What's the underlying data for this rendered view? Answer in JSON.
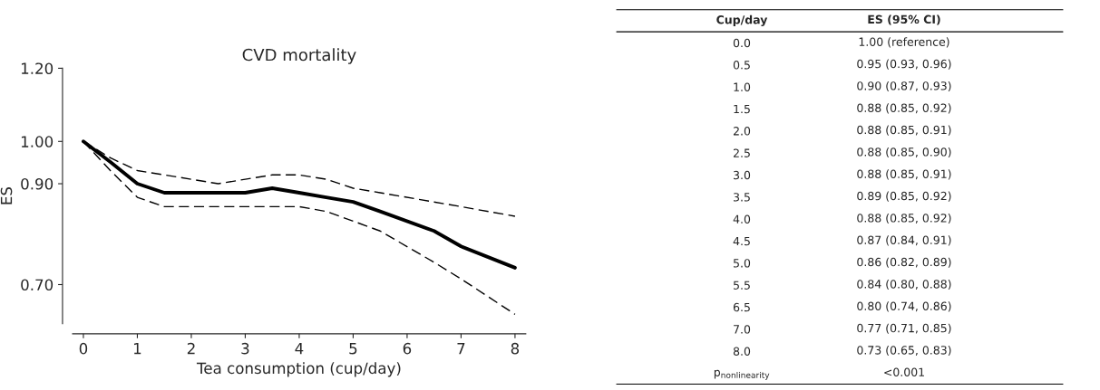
{
  "chart_data": [
    {
      "type": "line",
      "title": "CVD mortality",
      "xlabel": "Tea consumption (cup/day)",
      "ylabel": "ES",
      "x": [
        0,
        0.5,
        1,
        1.5,
        2,
        2.5,
        3,
        3.5,
        4,
        4.5,
        5,
        5.5,
        6.5,
        7,
        8
      ],
      "series": [
        {
          "color": "#000000",
          "line_style": "solid",
          "values": [
            1.0,
            0.95,
            0.9,
            0.88,
            0.88,
            0.88,
            0.88,
            0.89,
            0.88,
            0.87,
            0.86,
            0.84,
            0.8,
            0.77,
            0.73
          ]
        },
        {
          "color": "#000000",
          "line_style": "dashed",
          "values": [
            1.0,
            0.93,
            0.87,
            0.85,
            0.85,
            0.85,
            0.85,
            0.85,
            0.85,
            0.84,
            0.82,
            0.8,
            0.74,
            0.71,
            0.65
          ]
        },
        {
          "color": "#000000",
          "line_style": "dashed",
          "values": [
            1.0,
            0.96,
            0.93,
            0.92,
            0.91,
            0.9,
            0.91,
            0.92,
            0.92,
            0.91,
            0.89,
            0.88,
            0.86,
            0.85,
            0.83
          ]
        }
      ],
      "log": "y",
      "xlim": [
        -0.2,
        8.2
      ],
      "xticks": [
        0,
        1,
        2,
        3,
        4,
        5,
        6,
        7,
        8
      ],
      "ylim": [
        0.635,
        1.2
      ],
      "yticks": [
        {
          "value": 0.7,
          "label": "0.70"
        },
        {
          "value": 0.9,
          "label": "0.90"
        },
        {
          "value": 1.0,
          "label": "1.00"
        },
        {
          "value": 1.2,
          "label": "1.20"
        }
      ],
      "grid": false,
      "legend": false,
      "marker": "none"
    },
    {
      "type": "heatmap",
      "ylabel": "Cup/day",
      "categories": [
        "ES (95% CI)"
      ],
      "y_categories": [
        "0.0",
        "0.5",
        "1.0",
        "1.5",
        "2.0",
        "2.5",
        "3.0",
        "3.5",
        "4.0",
        "4.5",
        "5.0",
        "5.5",
        "6.5",
        "7.0",
        "8.0",
        "p$_{nonlinearity}$"
      ],
      "cells": [
        [
          null
        ],
        [
          null
        ],
        [
          null
        ],
        [
          null
        ],
        [
          null
        ],
        [
          null
        ],
        [
          null
        ],
        [
          null
        ],
        [
          null
        ],
        [
          null
        ],
        [
          null
        ],
        [
          null
        ],
        [
          null
        ],
        [
          null
        ],
        [
          null
        ],
        [
          null
        ]
      ],
      "cell_labels": [
        [
          "1.00 (reference)"
        ],
        [
          "0.95 (0.93, 0.96)"
        ],
        [
          "0.90 (0.87, 0.93)"
        ],
        [
          "0.88 (0.85, 0.92)"
        ],
        [
          "0.88 (0.85, 0.91)"
        ],
        [
          "0.88 (0.85, 0.90)"
        ],
        [
          "0.88 (0.85, 0.91)"
        ],
        [
          "0.89 (0.85, 0.92)"
        ],
        [
          "0.88 (0.85, 0.92)"
        ],
        [
          "0.87 (0.84, 0.91)"
        ],
        [
          "0.86 (0.82, 0.89)"
        ],
        [
          "0.84 (0.80, 0.88)"
        ],
        [
          "0.80 (0.74, 0.86)"
        ],
        [
          "0.77 (0.71, 0.85)"
        ],
        [
          "0.73 (0.65, 0.83)"
        ],
        [
          "<0.001"
        ]
      ]
    }
  ]
}
